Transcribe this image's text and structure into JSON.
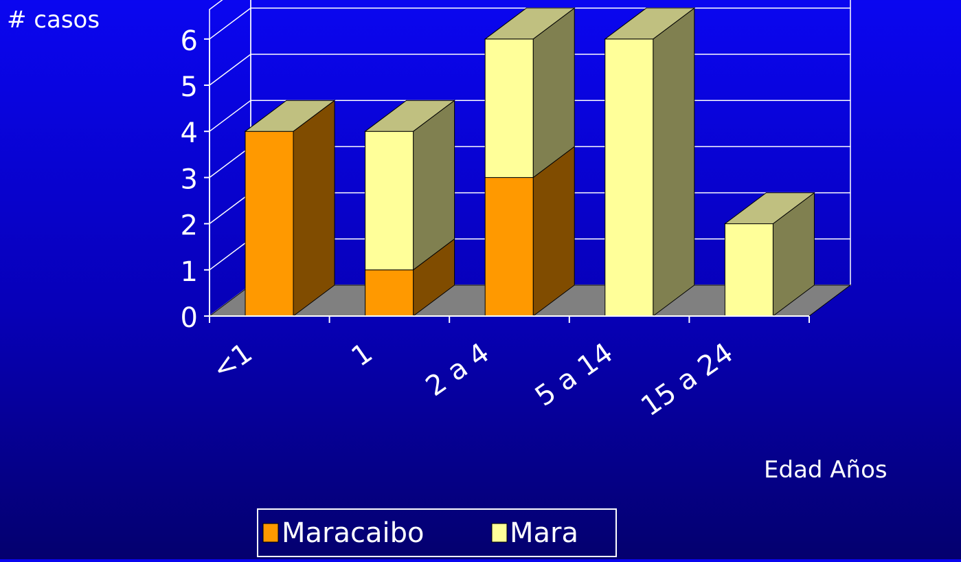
{
  "chart_data": {
    "type": "bar",
    "stacked": true,
    "three_d": true,
    "ylabel": "# casos",
    "xlabel": "Edad Años",
    "categories": [
      "<1",
      "1",
      "2 a 4",
      "5 a 14",
      "15 a 24"
    ],
    "series": [
      {
        "name": "Maracaibo",
        "values": [
          4,
          1,
          3,
          0,
          0
        ],
        "color": "#ff9900"
      },
      {
        "name": "Mara",
        "values": [
          0,
          3,
          3,
          6,
          2
        ],
        "color": "#ffff99"
      }
    ],
    "ylim": [
      0,
      6
    ],
    "yticks": [
      "0",
      "1",
      "2",
      "3",
      "4",
      "5",
      "6"
    ],
    "grid": true,
    "legend_position": "bottom-center",
    "colors": {
      "background": "#0700b8",
      "gridline": "#ffffff",
      "floor": "#808080",
      "maracaibo_side": "#804c00",
      "maracaibo_top": "#c0c080",
      "mara_side": "#808050",
      "mara_top": "#c0c080"
    }
  }
}
